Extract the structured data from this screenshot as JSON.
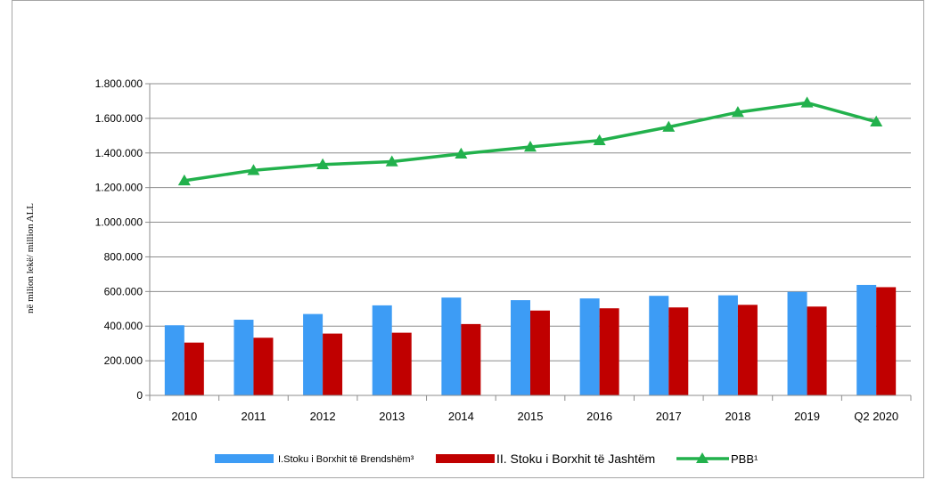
{
  "chart_data": {
    "type": "bar",
    "ylabel": "në milion lekë/ million ALL",
    "xlabel": "",
    "title": "",
    "ylim": [
      0,
      1800000
    ],
    "ytick_step": 200000,
    "categories": [
      "2010",
      "2011",
      "2012",
      "2013",
      "2014",
      "2015",
      "2016",
      "2017",
      "2018",
      "2019",
      "Q2 2020"
    ],
    "series": [
      {
        "name": "I.Stoku i Borxhit të Brendshëm³",
        "kind": "bar",
        "color": "#3d9cf5",
        "values": [
          405000,
          437000,
          470000,
          520000,
          565000,
          550000,
          560000,
          575000,
          578000,
          598000,
          638000
        ]
      },
      {
        "name": "II. Stoku i Borxhit të Jashtëm",
        "kind": "bar",
        "color": "#c00000",
        "values": [
          305000,
          333000,
          357000,
          362000,
          412000,
          490000,
          503000,
          508000,
          523000,
          513000,
          625000
        ]
      },
      {
        "name": "PBB¹",
        "kind": "line",
        "color": "#22b14c",
        "values": [
          1240000,
          1300000,
          1333000,
          1350000,
          1395000,
          1435000,
          1472000,
          1550000,
          1635000,
          1690000,
          1580000
        ]
      }
    ],
    "grid": "horizontal",
    "legend_position": "bottom"
  }
}
